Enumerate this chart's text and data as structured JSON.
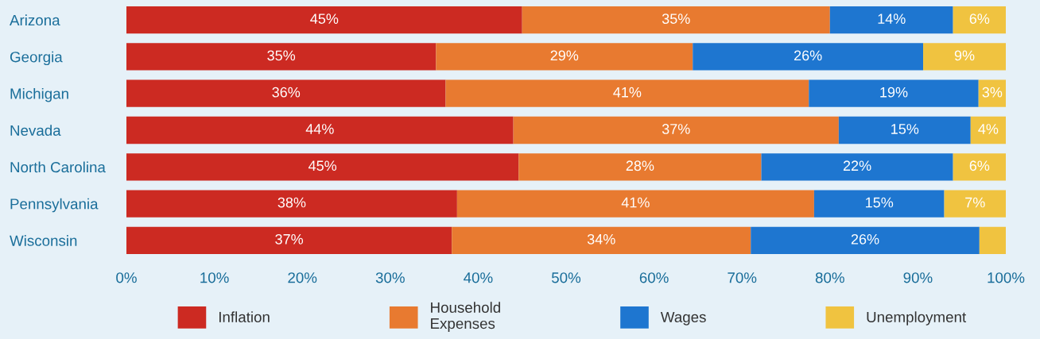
{
  "chart_data": {
    "type": "bar",
    "orientation": "horizontal",
    "stacked": true,
    "legend": "bottom",
    "grid": false,
    "categories": [
      "Arizona",
      "Georgia",
      "Michigan",
      "Nevada",
      "North Carolina",
      "Pennsylvania",
      "Wisconsin"
    ],
    "series": [
      {
        "name": "Inflation",
        "color": "#cc2a22",
        "values": [
          45,
          35.2,
          36.3,
          44,
          44.6,
          37.6,
          37
        ],
        "value_labels": [
          "45%",
          "35%",
          "36%",
          "44%",
          "45%",
          "38%",
          "37%"
        ]
      },
      {
        "name": "Household Expenses",
        "color": "#e87a30",
        "values": [
          35,
          29.2,
          41.3,
          37,
          27.6,
          40.6,
          34
        ],
        "value_labels": [
          "35%",
          "29%",
          "41%",
          "37%",
          "28%",
          "41%",
          "34%"
        ]
      },
      {
        "name": "Wages",
        "color": "#1e76d0",
        "values": [
          14,
          26.2,
          19.3,
          15,
          21.8,
          14.8,
          26
        ],
        "value_labels": [
          "14%",
          "26%",
          "19%",
          "15%",
          "22%",
          "15%",
          "26%"
        ]
      },
      {
        "name": "Unemployment",
        "color": "#f0c340",
        "values": [
          6,
          9.4,
          3.1,
          4,
          6,
          7,
          3
        ],
        "value_labels": [
          "6%",
          "9%",
          "3%",
          "4%",
          "6%",
          "7%",
          null
        ]
      }
    ],
    "xlim": [
      0,
      100
    ],
    "xticks": [
      {
        "value": 0,
        "label": "0%"
      },
      {
        "value": 10,
        "label": "10%"
      },
      {
        "value": 20,
        "label": "20%"
      },
      {
        "value": 30,
        "label": "30%"
      },
      {
        "value": 40,
        "label": "40%"
      },
      {
        "value": 50,
        "label": "50%"
      },
      {
        "value": 60,
        "label": "60%"
      },
      {
        "value": 70,
        "label": "70%"
      },
      {
        "value": 80,
        "label": "80%"
      },
      {
        "value": 90,
        "label": "90%"
      },
      {
        "value": 100,
        "label": "100%"
      }
    ]
  }
}
